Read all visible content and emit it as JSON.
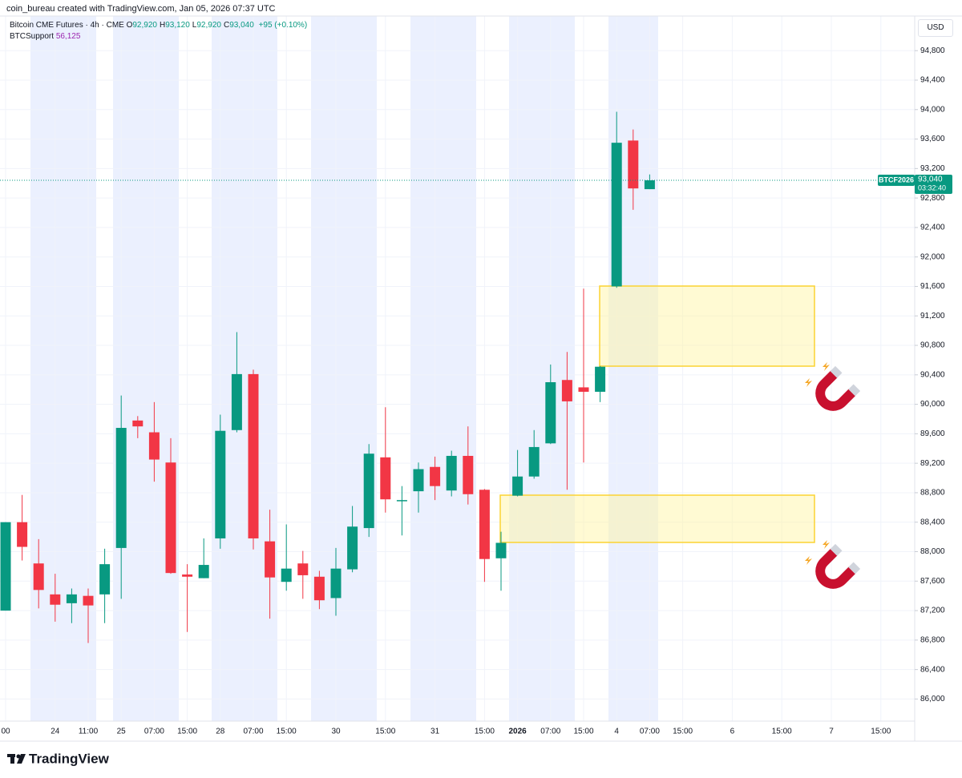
{
  "header": {
    "credit": "coin_bureau created with TradingView.com, Jan 05, 2026 07:37 UTC"
  },
  "legend": {
    "symbol": "Bitcoin CME Futures · 4h · CME",
    "ohlc": [
      {
        "key": "O",
        "value": "92,920"
      },
      {
        "key": "H",
        "value": "93,120"
      },
      {
        "key": "L",
        "value": "92,920"
      },
      {
        "key": "C",
        "value": "93,040"
      }
    ],
    "change": "+95 (+0.10%)",
    "indicator": "BTCSupport",
    "indicator_value": "56,125"
  },
  "chart_data": {
    "type": "candlestick",
    "categories": [
      "00",
      null,
      null,
      "24",
      null,
      "11:00",
      null,
      "25",
      null,
      "07:00",
      null,
      "15:00",
      null,
      "28",
      null,
      "07:00",
      null,
      "15:00",
      null,
      null,
      "30",
      null,
      null,
      "15:00",
      null,
      null,
      "31",
      null,
      null,
      "15:00",
      null,
      "2026",
      null,
      "07:00",
      null,
      "15:00",
      null,
      "4",
      null,
      "07:00",
      null,
      "15:00",
      null,
      null,
      "6",
      null,
      null,
      "15:00",
      null,
      null,
      "7",
      null,
      null,
      "15:00",
      null
    ],
    "open": [
      87200,
      88400,
      87840,
      87420,
      87300,
      87400,
      87420,
      88050,
      89780,
      89620,
      89210,
      87690,
      87640,
      88180,
      89650,
      90410,
      88140,
      87590,
      87840,
      87660,
      87370,
      87760,
      88320,
      89280,
      88690,
      88820,
      89150,
      88830,
      89300,
      88840,
      87910,
      88760,
      89020,
      89470,
      90330,
      90230,
      90170,
      91600,
      93580,
      92920,
      null,
      null,
      null,
      null,
      null,
      null,
      null,
      null,
      null,
      null,
      null,
      null,
      null,
      null,
      null
    ],
    "high": [
      88400,
      88770,
      88170,
      87700,
      87500,
      87500,
      88040,
      90120,
      89840,
      90030,
      89540,
      87830,
      88180,
      89860,
      90980,
      90470,
      88570,
      88370,
      88010,
      87740,
      88050,
      88620,
      89460,
      89960,
      88890,
      89210,
      89290,
      89370,
      89700,
      88850,
      88270,
      89380,
      89650,
      90540,
      90710,
      91570,
      90520,
      93970,
      93730,
      93120,
      null,
      null,
      null,
      null,
      null,
      null,
      null,
      null,
      null,
      null,
      null,
      null,
      null,
      null,
      null
    ],
    "low": [
      87200,
      87880,
      87230,
      87050,
      87030,
      86760,
      87030,
      87360,
      89540,
      88950,
      87700,
      86910,
      87640,
      88040,
      89620,
      88030,
      87090,
      87470,
      87360,
      87220,
      87130,
      87720,
      88200,
      88530,
      88220,
      88530,
      88700,
      88750,
      88640,
      87590,
      87470,
      88750,
      88990,
      89460,
      88840,
      89210,
      90030,
      91580,
      92640,
      92920,
      null,
      null,
      null,
      null,
      null,
      null,
      null,
      null,
      null,
      null,
      null,
      null,
      null,
      null,
      null
    ],
    "close": [
      88400,
      88065,
      87480,
      87280,
      87420,
      87270,
      87830,
      89680,
      89700,
      89250,
      87710,
      87660,
      87820,
      89640,
      90410,
      88180,
      87650,
      87770,
      87680,
      87340,
      87770,
      88340,
      89330,
      88710,
      88700,
      89120,
      88890,
      89300,
      88780,
      87900,
      88120,
      89020,
      89420,
      90300,
      90040,
      90170,
      90510,
      93550,
      92930,
      93040,
      null,
      null,
      null,
      null,
      null,
      null,
      null,
      null,
      null,
      null,
      null,
      null,
      null,
      null,
      null
    ],
    "up_color": "#089981",
    "down_color": "#f23645",
    "ylim": [
      85700,
      95270
    ],
    "yticks": [
      {
        "value": 86000,
        "label": "86,000"
      },
      {
        "value": 86400,
        "label": "86,400"
      },
      {
        "value": 86800,
        "label": "86,800"
      },
      {
        "value": 87200,
        "label": "87,200"
      },
      {
        "value": 87600,
        "label": "87,600"
      },
      {
        "value": 88000,
        "label": "88,000"
      },
      {
        "value": 88400,
        "label": "88,400"
      },
      {
        "value": 88800,
        "label": "88,800"
      },
      {
        "value": 89200,
        "label": "89,200"
      },
      {
        "value": 89600,
        "label": "89,600"
      },
      {
        "value": 90000,
        "label": "90,000"
      },
      {
        "value": 90400,
        "label": "90,400"
      },
      {
        "value": 90800,
        "label": "90,800"
      },
      {
        "value": 91200,
        "label": "91,200"
      },
      {
        "value": 91600,
        "label": "91,600"
      },
      {
        "value": 92000,
        "label": "92,000"
      },
      {
        "value": 92400,
        "label": "92,400"
      },
      {
        "value": 92800,
        "label": "92,800"
      },
      {
        "value": 93200,
        "label": "93,200"
      },
      {
        "value": 93600,
        "label": "93,600"
      },
      {
        "value": 94000,
        "label": "94,000"
      },
      {
        "value": 94400,
        "label": "94,400"
      },
      {
        "value": 94800,
        "label": "94,800"
      }
    ],
    "grid": true,
    "currency": "USD",
    "last_price": {
      "symbol": "BTCF2026",
      "value": 93040,
      "label": "93,040",
      "countdown": "03:32:40"
    }
  },
  "footer": {
    "brand": "TradingView"
  }
}
